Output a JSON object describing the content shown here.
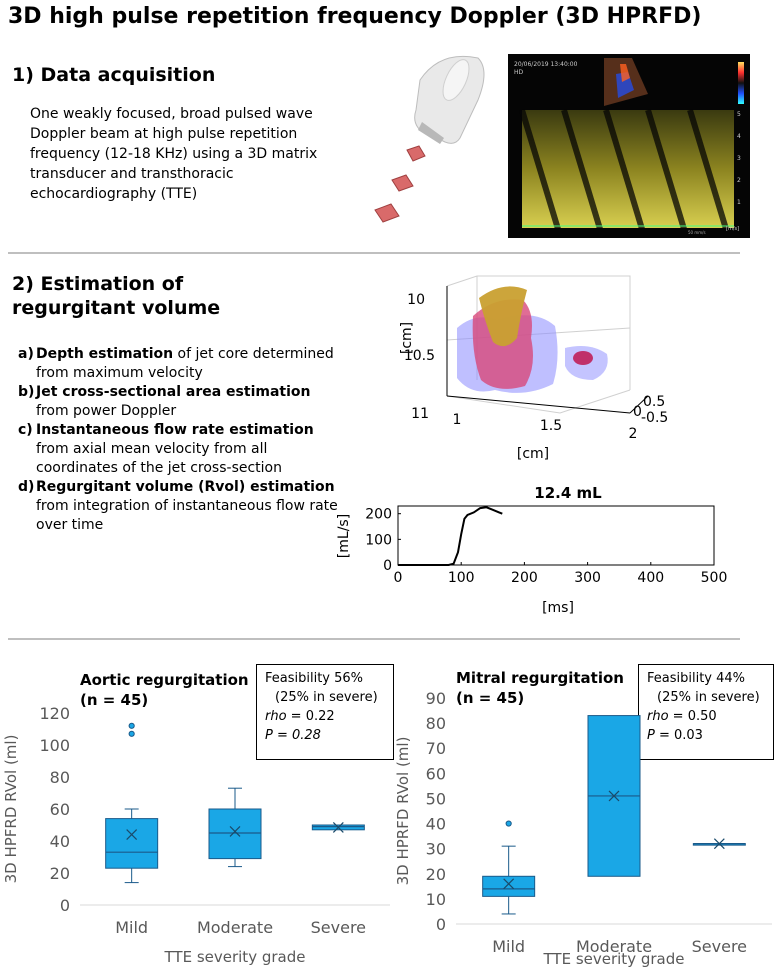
{
  "title": "3D high pulse repetition frequency Doppler (3D HPRFD)",
  "section1": {
    "heading": "1) Data acquisition",
    "body": "One weakly focused, broad pulsed wave Doppler beam at high pulse repetition frequency (12-18 KHz) using a 3D matrix transducer and transthoracic echocardiography (TTE)",
    "echo_timestamp": "20/06/2019 13:40:00",
    "echo_mode": "HD",
    "echo_scale_ticks": [
      "5",
      "4",
      "3",
      "2",
      "1",
      "[m/s]"
    ],
    "echo_sweep": "50 mm/s"
  },
  "section2": {
    "heading": "2) Estimation of regurgitant volume",
    "steps": [
      {
        "label": "a)",
        "bold": "Depth estimation",
        "text": " of jet core determined from maximum velocity"
      },
      {
        "label": "b)",
        "bold": "Jet cross-sectional area estimation",
        "text": " from power Doppler"
      },
      {
        "label": "c)",
        "bold": "Instantaneous flow rate estimation",
        "text": " from axial mean velocity from all coordinates of the jet cross-section"
      },
      {
        "label": "d)",
        "bold": "Regurgitant volume (Rvol) estimation",
        "text": " from integration of instantaneous flow rate over time"
      }
    ],
    "plot3d": {
      "z_ticks": [
        "10",
        "10.5",
        "11"
      ],
      "z_label": "[cm]",
      "x_ticks": [
        "1",
        "1.5",
        "2"
      ],
      "x_label": "[cm]",
      "y_ticks": [
        "0.5",
        "0",
        "-0.5"
      ]
    },
    "flow_plot": {
      "title": "12.4 mL",
      "ylabel": "[mL/s]",
      "xlabel": "[ms]"
    }
  },
  "chart_data": [
    {
      "type": "box",
      "title": "Aortic regurgitation (n = 45)",
      "info": {
        "feasibility": "Feasibility 56%",
        "severe": "(25% in severe)",
        "rho_label": "rho",
        "rho_value": " = 0.22",
        "p_label": "P",
        "p_value": " = 0.28"
      },
      "ylabel": "3D HPFRD RVol (ml)",
      "xlabel": "TTE severity grade",
      "ylim": [
        0,
        120
      ],
      "yticks": [
        0,
        20,
        40,
        60,
        80,
        100,
        120
      ],
      "categories": [
        "Mild",
        "Moderate",
        "Severe"
      ],
      "boxes": [
        {
          "min": 14,
          "q1": 23,
          "median": 33,
          "mean": 44,
          "q3": 54,
          "max": 60,
          "outliers": [
            107,
            112
          ]
        },
        {
          "min": 24,
          "q1": 29,
          "median": 45,
          "mean": 46,
          "q3": 60,
          "max": 73,
          "outliers": []
        },
        {
          "min": 47,
          "q1": 47,
          "median": 49,
          "mean": 48.5,
          "q3": 50,
          "max": 50,
          "outliers": []
        }
      ]
    },
    {
      "type": "box",
      "title": "Mitral regurgitation (n = 45)",
      "info": {
        "feasibility": "Feasibility 44%",
        "severe": "(25% in severe)",
        "rho_label": "rho",
        "rho_value": " = 0.50",
        "p_label": "P",
        "p_value": " = 0.03"
      },
      "ylabel": "3D HPRFD RVol (ml)",
      "xlabel": "TTE severity grade",
      "ylim": [
        0,
        90
      ],
      "yticks": [
        0,
        10,
        20,
        30,
        40,
        50,
        60,
        70,
        80,
        90
      ],
      "categories": [
        "Mild",
        "Moderate",
        "Severe"
      ],
      "boxes": [
        {
          "min": 4,
          "q1": 11,
          "median": 14,
          "mean": 16,
          "q3": 19,
          "max": 31,
          "outliers": [
            40
          ]
        },
        {
          "min": 19,
          "q1": 19,
          "median": 51,
          "mean": 51,
          "q3": 83,
          "max": 83,
          "outliers": []
        },
        {
          "min": 32,
          "q1": 32,
          "median": 32,
          "mean": 32,
          "q3": 32,
          "max": 32,
          "outliers": []
        }
      ]
    },
    {
      "type": "line",
      "title": "12.4 mL",
      "xlabel": "[ms]",
      "ylabel": "[mL/s]",
      "xlim": [
        0,
        500
      ],
      "ylim": [
        0,
        230
      ],
      "xticks": [
        0,
        100,
        200,
        300,
        400,
        500
      ],
      "yticks": [
        0,
        100,
        200
      ],
      "x": [
        0,
        50,
        80,
        88,
        95,
        100,
        105,
        110,
        120,
        130,
        140,
        150,
        160,
        165
      ],
      "y": [
        0,
        0,
        0,
        5,
        50,
        120,
        180,
        195,
        205,
        222,
        225,
        215,
        205,
        200
      ]
    }
  ],
  "colors": {
    "box_fill": "#1aa7e6",
    "box_stroke": "#1a5a8a",
    "axis": "#d9d9d9",
    "text_grey": "#595959"
  }
}
